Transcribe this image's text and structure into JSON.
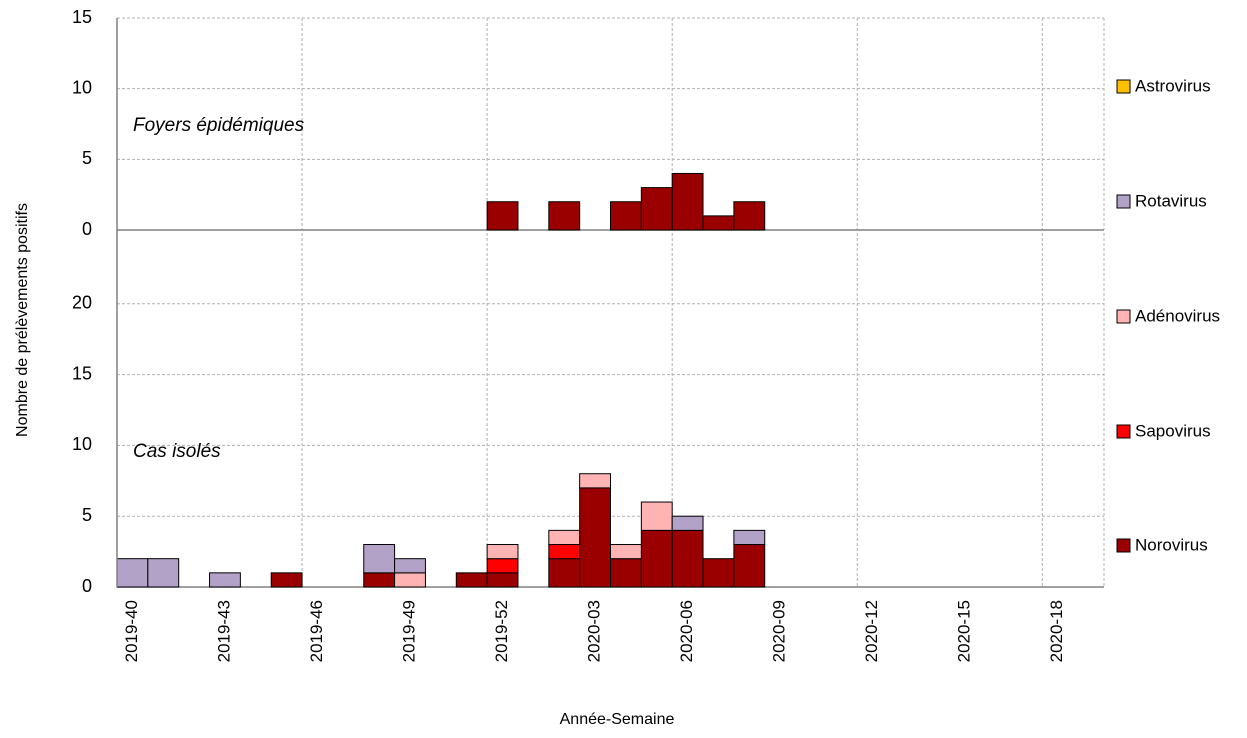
{
  "chart_data": {
    "type": "bar",
    "stacked": true,
    "xlabel": "Année-Semaine",
    "ylabel": "Nombre de prélèvements positifs",
    "categories": [
      "2019-40",
      null,
      null,
      "2019-43",
      null,
      null,
      "2019-46",
      null,
      null,
      "2019-49",
      null,
      null,
      "2019-52",
      null,
      null,
      "2020-03",
      null,
      null,
      "2020-06",
      null,
      null,
      "2020-09",
      null,
      null,
      "2020-12",
      null,
      null,
      "2020-15",
      null,
      null,
      "2020-18",
      null
    ],
    "grid": true,
    "legend": "right",
    "panels": [
      {
        "annotation": "Foyers épidémiques",
        "ylim": [
          0,
          15
        ],
        "yticks": [
          0,
          5,
          10,
          15
        ],
        "series": [
          {
            "name": "Norovirus",
            "color": "#9b0000",
            "values": [
              0,
              0,
              0,
              0,
              0,
              0,
              0,
              0,
              0,
              0,
              0,
              0,
              2,
              0,
              2,
              0,
              2,
              3,
              4,
              1,
              2,
              0,
              0,
              0,
              0,
              0,
              0,
              0,
              0,
              0,
              0,
              0
            ]
          }
        ]
      },
      {
        "annotation": "Cas isolés",
        "ylim": [
          0,
          25
        ],
        "yticks": [
          0,
          5,
          10,
          15,
          20
        ],
        "series": [
          {
            "name": "Norovirus",
            "color": "#9b0000",
            "values": [
              0,
              0,
              0,
              0,
              0,
              1,
              0,
              0,
              1,
              0,
              0,
              1,
              1,
              0,
              2,
              7,
              2,
              4,
              4,
              2,
              3,
              0,
              0,
              0,
              0,
              0,
              0,
              0,
              0,
              0,
              0,
              0
            ]
          },
          {
            "name": "Sapovirus",
            "color": "#ff0000",
            "values": [
              0,
              0,
              0,
              0,
              0,
              0,
              0,
              0,
              0,
              0,
              0,
              0,
              1,
              0,
              1,
              0,
              0,
              0,
              0,
              0,
              0,
              0,
              0,
              0,
              0,
              0,
              0,
              0,
              0,
              0,
              0,
              0
            ]
          },
          {
            "name": "Adénovirus",
            "color": "#ffb3b3",
            "values": [
              0,
              0,
              0,
              0,
              0,
              0,
              0,
              0,
              0,
              1,
              0,
              0,
              1,
              0,
              1,
              1,
              1,
              2,
              0,
              0,
              0,
              0,
              0,
              0,
              0,
              0,
              0,
              0,
              0,
              0,
              0,
              0
            ]
          },
          {
            "name": "Rotavirus",
            "color": "#b3a2c7",
            "values": [
              2,
              2,
              0,
              1,
              0,
              0,
              0,
              0,
              2,
              1,
              0,
              0,
              0,
              0,
              0,
              0,
              0,
              0,
              1,
              0,
              1,
              0,
              0,
              0,
              0,
              0,
              0,
              0,
              0,
              0,
              0,
              0
            ]
          },
          {
            "name": "Astrovirus",
            "color": "#ffc000",
            "values": [
              0,
              0,
              0,
              0,
              0,
              0,
              0,
              0,
              0,
              0,
              0,
              0,
              0,
              0,
              0,
              0,
              0,
              0,
              0,
              0,
              0,
              0,
              0,
              0,
              0,
              0,
              0,
              0,
              0,
              0,
              0,
              0
            ]
          }
        ]
      }
    ]
  }
}
